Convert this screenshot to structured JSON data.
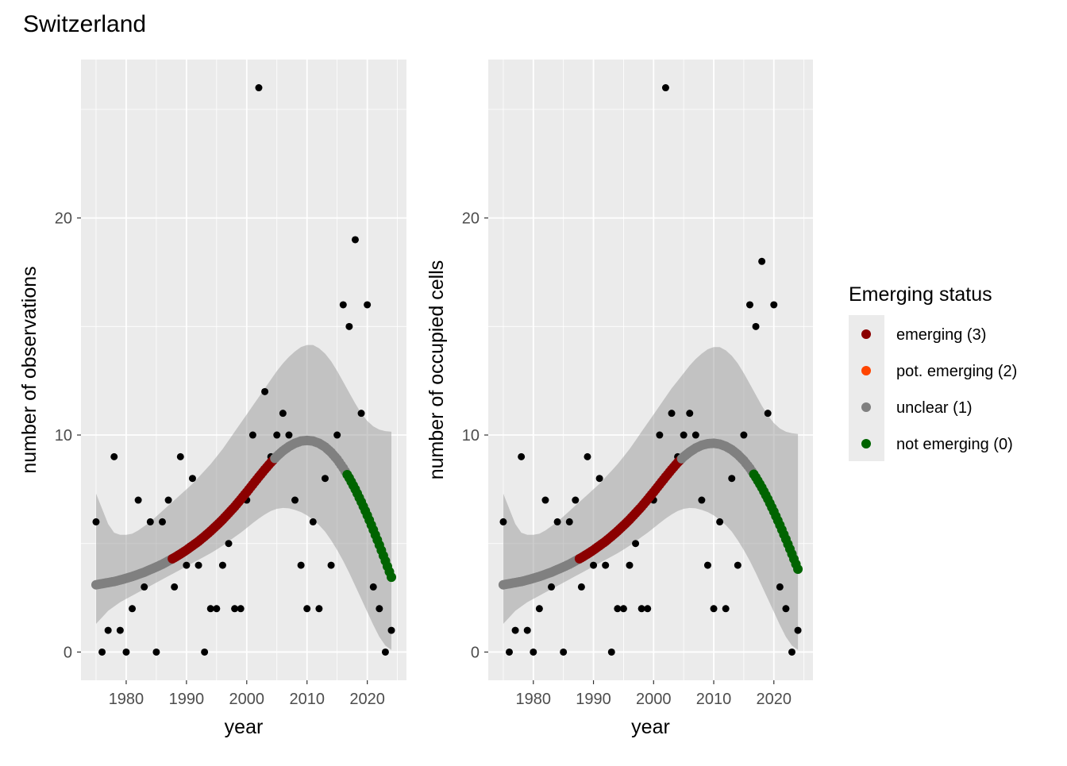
{
  "title": "Switzerland",
  "legend": {
    "title": "Emerging status",
    "items": [
      {
        "label": "emerging (3)",
        "color": "#8B0000"
      },
      {
        "label": "pot. emerging (2)",
        "color": "#FF4500"
      },
      {
        "label": "unclear (1)",
        "color": "#808080"
      },
      {
        "label": "not emerging (0)",
        "color": "#006400"
      }
    ]
  },
  "chart_data": [
    {
      "type": "scatter",
      "xlabel": "year",
      "ylabel": "number of observations",
      "xlim": [
        1972.5,
        2026.5
      ],
      "ylim": [
        -1.3,
        27.3
      ],
      "x_ticks": [
        1980,
        1990,
        2000,
        2010,
        2020
      ],
      "y_ticks": [
        0,
        10,
        20
      ],
      "observed": {
        "x": [
          1975,
          1976,
          1977,
          1978,
          1979,
          1980,
          1981,
          1982,
          1983,
          1984,
          1985,
          1986,
          1987,
          1988,
          1989,
          1990,
          1991,
          1992,
          1993,
          1994,
          1995,
          1996,
          1997,
          1998,
          1999,
          2000,
          2001,
          2002,
          2003,
          2004,
          2005,
          2006,
          2007,
          2008,
          2009,
          2010,
          2011,
          2012,
          2013,
          2014,
          2015,
          2016,
          2017,
          2018,
          2019,
          2020,
          2021,
          2022,
          2023,
          2024
        ],
        "y": [
          6,
          0,
          1,
          9,
          1,
          0,
          2,
          7,
          3,
          6,
          0,
          6,
          7,
          3,
          9,
          4,
          8,
          4,
          0,
          2,
          2,
          4,
          5,
          2,
          2,
          7,
          10,
          26,
          12,
          9,
          10,
          11,
          10,
          7,
          4,
          2,
          6,
          2,
          8,
          4,
          10,
          16,
          15,
          19,
          11,
          16,
          3,
          2,
          0,
          1
        ]
      },
      "trend": {
        "x": [
          1975,
          1976,
          1977,
          1978,
          1979,
          1980,
          1981,
          1982,
          1983,
          1984,
          1985,
          1986,
          1987,
          1988,
          1989,
          1990,
          1991,
          1992,
          1993,
          1994,
          1995,
          1996,
          1997,
          1998,
          1999,
          2000,
          2001,
          2002,
          2003,
          2004,
          2005,
          2006,
          2007,
          2008,
          2009,
          2010,
          2011,
          2012,
          2013,
          2014,
          2015,
          2016,
          2017,
          2018,
          2019,
          2020,
          2021,
          2022,
          2023,
          2024
        ],
        "y": [
          3.1,
          3.15,
          3.2,
          3.25,
          3.32,
          3.4,
          3.48,
          3.58,
          3.68,
          3.8,
          3.92,
          4.05,
          4.2,
          4.35,
          4.52,
          4.7,
          4.9,
          5.1,
          5.33,
          5.57,
          5.83,
          6.1,
          6.4,
          6.7,
          7.03,
          7.37,
          7.72,
          8.07,
          8.41,
          8.73,
          9.02,
          9.27,
          9.47,
          9.62,
          9.72,
          9.75,
          9.72,
          9.62,
          9.45,
          9.2,
          8.88,
          8.48,
          8.02,
          7.5,
          6.92,
          6.3,
          5.63,
          4.93,
          4.2,
          3.45
        ],
        "status": [
          1,
          1,
          1,
          1,
          1,
          1,
          1,
          1,
          1,
          1,
          1,
          1,
          1,
          3,
          3,
          3,
          3,
          3,
          3,
          3,
          3,
          3,
          3,
          3,
          3,
          3,
          3,
          3,
          3,
          3,
          1,
          1,
          1,
          1,
          1,
          1,
          1,
          1,
          1,
          1,
          1,
          1,
          0,
          0,
          0,
          0,
          0,
          0,
          0,
          0
        ],
        "ci_lower": [
          1.3,
          1.6,
          1.9,
          2.1,
          2.3,
          2.45,
          2.6,
          2.75,
          2.9,
          3.05,
          3.2,
          3.35,
          3.5,
          3.65,
          3.8,
          3.95,
          4.1,
          4.25,
          4.4,
          4.55,
          4.72,
          4.9,
          5.1,
          5.3,
          5.5,
          5.72,
          5.94,
          6.15,
          6.34,
          6.5,
          6.6,
          6.64,
          6.62,
          6.55,
          6.45,
          6.3,
          6.1,
          5.85,
          5.55,
          5.15,
          4.7,
          4.2,
          3.65,
          3.05,
          2.45,
          1.85,
          1.25,
          0.7,
          0.3,
          0.1
        ],
        "ci_upper": [
          7.3,
          6.6,
          5.9,
          5.5,
          5.4,
          5.4,
          5.45,
          5.6,
          5.8,
          6.0,
          6.25,
          6.5,
          6.75,
          7.0,
          7.25,
          7.5,
          7.75,
          8.05,
          8.35,
          8.65,
          9.0,
          9.35,
          9.75,
          10.15,
          10.55,
          10.95,
          11.35,
          11.75,
          12.15,
          12.55,
          12.95,
          13.3,
          13.6,
          13.85,
          14.05,
          14.15,
          14.15,
          14.0,
          13.75,
          13.4,
          12.95,
          12.45,
          11.95,
          11.45,
          11.0,
          10.65,
          10.4,
          10.25,
          10.18,
          10.15
        ]
      }
    },
    {
      "type": "scatter",
      "xlabel": "year",
      "ylabel": "number of occupied cells",
      "xlim": [
        1972.5,
        2026.5
      ],
      "ylim": [
        -1.3,
        27.3
      ],
      "x_ticks": [
        1980,
        1990,
        2000,
        2010,
        2020
      ],
      "y_ticks": [
        0,
        10,
        20
      ],
      "observed": {
        "x": [
          1975,
          1976,
          1977,
          1978,
          1979,
          1980,
          1981,
          1982,
          1983,
          1984,
          1985,
          1986,
          1987,
          1988,
          1989,
          1990,
          1991,
          1992,
          1993,
          1994,
          1995,
          1996,
          1997,
          1998,
          1999,
          2000,
          2001,
          2002,
          2003,
          2004,
          2005,
          2006,
          2007,
          2008,
          2009,
          2010,
          2011,
          2012,
          2013,
          2014,
          2015,
          2016,
          2017,
          2018,
          2019,
          2020,
          2021,
          2022,
          2023,
          2024
        ],
        "y": [
          6,
          0,
          1,
          9,
          1,
          0,
          2,
          7,
          3,
          6,
          0,
          6,
          7,
          3,
          9,
          4,
          8,
          4,
          0,
          2,
          2,
          4,
          5,
          2,
          2,
          7,
          10,
          26,
          11,
          9,
          10,
          11,
          10,
          7,
          4,
          2,
          6,
          2,
          8,
          4,
          10,
          16,
          15,
          18,
          11,
          16,
          3,
          2,
          0,
          1
        ]
      },
      "trend": {
        "x": [
          1975,
          1976,
          1977,
          1978,
          1979,
          1980,
          1981,
          1982,
          1983,
          1984,
          1985,
          1986,
          1987,
          1988,
          1989,
          1990,
          1991,
          1992,
          1993,
          1994,
          1995,
          1996,
          1997,
          1998,
          1999,
          2000,
          2001,
          2002,
          2003,
          2004,
          2005,
          2006,
          2007,
          2008,
          2009,
          2010,
          2011,
          2012,
          2013,
          2014,
          2015,
          2016,
          2017,
          2018,
          2019,
          2020,
          2021,
          2022,
          2023,
          2024
        ],
        "y": [
          3.1,
          3.15,
          3.2,
          3.25,
          3.32,
          3.4,
          3.48,
          3.58,
          3.68,
          3.8,
          3.92,
          4.05,
          4.2,
          4.35,
          4.52,
          4.7,
          4.9,
          5.1,
          5.33,
          5.57,
          5.83,
          6.1,
          6.4,
          6.7,
          7.03,
          7.37,
          7.72,
          8.07,
          8.41,
          8.73,
          9.0,
          9.22,
          9.4,
          9.53,
          9.6,
          9.62,
          9.58,
          9.48,
          9.32,
          9.1,
          8.82,
          8.47,
          8.05,
          7.58,
          7.05,
          6.47,
          5.85,
          5.2,
          4.52,
          3.82
        ],
        "status": [
          1,
          1,
          1,
          1,
          1,
          1,
          1,
          1,
          1,
          1,
          1,
          1,
          1,
          3,
          3,
          3,
          3,
          3,
          3,
          3,
          3,
          3,
          3,
          3,
          3,
          3,
          3,
          3,
          3,
          3,
          1,
          1,
          1,
          1,
          1,
          1,
          1,
          1,
          1,
          1,
          1,
          1,
          0,
          0,
          0,
          0,
          0,
          0,
          0,
          0
        ],
        "ci_lower": [
          1.3,
          1.6,
          1.9,
          2.1,
          2.3,
          2.45,
          2.6,
          2.75,
          2.9,
          3.05,
          3.2,
          3.35,
          3.5,
          3.65,
          3.8,
          3.95,
          4.1,
          4.25,
          4.4,
          4.55,
          4.72,
          4.9,
          5.1,
          5.3,
          5.5,
          5.72,
          5.94,
          6.15,
          6.34,
          6.5,
          6.6,
          6.64,
          6.62,
          6.55,
          6.45,
          6.3,
          6.1,
          5.85,
          5.55,
          5.15,
          4.7,
          4.2,
          3.65,
          3.05,
          2.45,
          1.85,
          1.25,
          0.7,
          0.3,
          0.1
        ],
        "ci_upper": [
          7.3,
          6.6,
          5.9,
          5.5,
          5.4,
          5.4,
          5.45,
          5.6,
          5.8,
          6.0,
          6.25,
          6.5,
          6.75,
          7.0,
          7.25,
          7.5,
          7.75,
          8.05,
          8.35,
          8.65,
          9.0,
          9.35,
          9.75,
          10.15,
          10.55,
          10.95,
          11.35,
          11.75,
          12.15,
          12.5,
          12.85,
          13.2,
          13.5,
          13.75,
          13.95,
          14.05,
          14.05,
          13.9,
          13.65,
          13.3,
          12.85,
          12.35,
          11.85,
          11.35,
          10.9,
          10.55,
          10.3,
          10.15,
          10.08,
          10.05
        ]
      }
    }
  ]
}
